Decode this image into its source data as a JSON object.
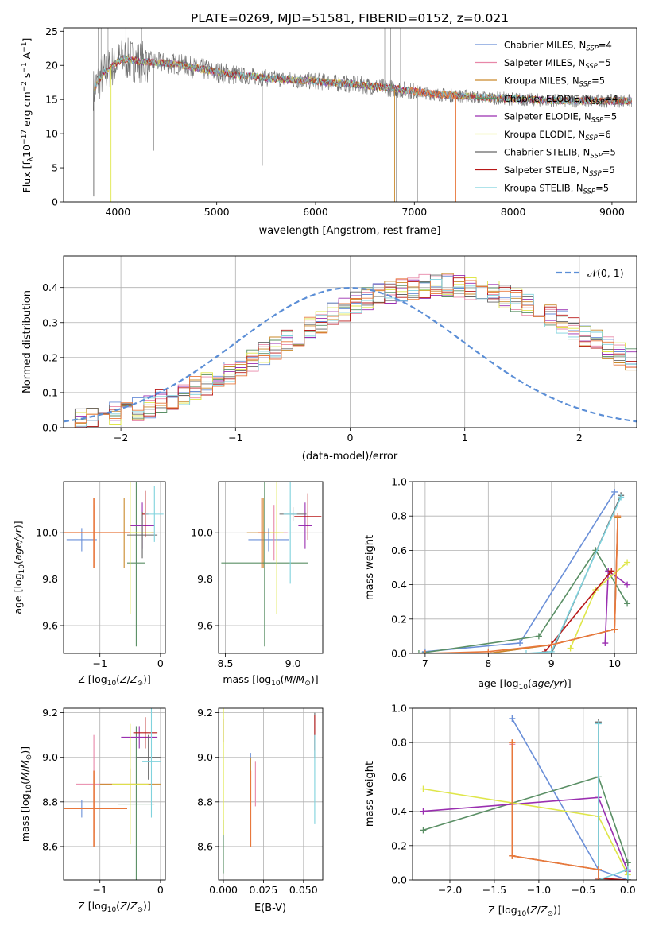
{
  "figure_title": "PLATE=0269, MJD=51581, FIBERID=0152, z=0.021",
  "colors": {
    "Chabrier MILES": "#6a8fd8",
    "Salpeter MILES": "#e887a8",
    "Kroupa MILES": "#c9892a",
    "Chabrier ELODIE": "#5a8f65",
    "Salpeter ELODIE": "#9a2fb0",
    "Kroupa ELODIE": "#dfe64a",
    "Chabrier STELIB": "#666666",
    "Salpeter STELIB": "#b81818",
    "Kroupa STELIB": "#7fd2dd",
    "gaussian": "#5b8ed6",
    "median": "#e8783c"
  },
  "chart_data": [
    {
      "type": "line",
      "xlabel": "wavelength [Angstrom, rest frame]",
      "ylabel": "Flux [f_λ10^{-17} erg cm^{-2} s^{-1} A^{-1}]",
      "xlim": [
        3450,
        9250
      ],
      "ylim": [
        0,
        25.5
      ],
      "xticks": [
        4000,
        5000,
        6000,
        7000,
        8000,
        9000
      ],
      "yticks": [
        0,
        5,
        10,
        15,
        20,
        25
      ],
      "grid": false,
      "legend_position": "top-right",
      "legend": [
        {
          "model": "Chabrier MILES",
          "nssp": "4"
        },
        {
          "model": "Salpeter MILES",
          "nssp": "5"
        },
        {
          "model": "Kroupa MILES",
          "nssp": "5"
        },
        {
          "model": "Chabrier ELODIE",
          "nssp": "4"
        },
        {
          "model": "Salpeter ELODIE",
          "nssp": "5"
        },
        {
          "model": "Kroupa ELODIE",
          "nssp": "6"
        },
        {
          "model": "Chabrier STELIB",
          "nssp": "5"
        },
        {
          "model": "Salpeter STELIB",
          "nssp": "5"
        },
        {
          "model": "Kroupa STELIB",
          "nssp": "5"
        }
      ],
      "spectrum_trend": {
        "x": [
          3760,
          3850,
          3950,
          4050,
          4200,
          4400,
          4600,
          4800,
          5000,
          5200,
          5400,
          5600,
          5800,
          6000,
          6200,
          6400,
          6600,
          6800,
          7000,
          7200,
          7400,
          7700,
          8000,
          8300,
          8600,
          8900,
          9200
        ],
        "y": [
          16.5,
          18.8,
          20.0,
          21.0,
          20.6,
          20.4,
          20.2,
          19.6,
          19.0,
          18.6,
          18.3,
          18.0,
          17.8,
          17.7,
          17.4,
          17.2,
          16.9,
          16.6,
          16.2,
          15.8,
          15.6,
          15.3,
          15.1,
          14.9,
          14.8,
          14.8,
          14.8
        ]
      },
      "deep_lines": [
        {
          "x": 3755,
          "y": 0.8,
          "series": "Chabrier STELIB"
        },
        {
          "x": 3930,
          "y": 0,
          "series": "Kroupa ELODIE"
        },
        {
          "x": 4360,
          "y": 7.5,
          "series": "Chabrier STELIB"
        },
        {
          "x": 5460,
          "y": 5.3,
          "series": "Chabrier STELIB"
        },
        {
          "x": 6800,
          "y": 0,
          "series": "Kroupa MILES"
        },
        {
          "x": 6820,
          "y": 0,
          "series": "Chabrier STELIB"
        },
        {
          "x": 7030,
          "y": 0,
          "series": "Chabrier STELIB"
        },
        {
          "x": 7420,
          "y": 0,
          "series": "median"
        }
      ],
      "clipped_lines": [
        3800,
        3830,
        3900,
        4080,
        4240,
        6700,
        6760,
        6860
      ]
    },
    {
      "type": "histogram",
      "xlabel": "(data-model)/error",
      "ylabel": "Normed distribution",
      "xlim": [
        -2.5,
        2.5
      ],
      "ylim": [
        0,
        0.49
      ],
      "xticks": [
        -2,
        -1,
        0,
        1,
        2
      ],
      "yticks": [
        0.0,
        0.1,
        0.2,
        0.3,
        0.4
      ],
      "grid": true,
      "legend_position": "top-right",
      "bin_width": 0.1,
      "bin_start": -2.5,
      "base_centers": [
        0.018,
        0.025,
        0.031,
        0.036,
        0.041,
        0.046,
        0.052,
        0.062,
        0.073,
        0.085,
        0.097,
        0.111,
        0.126,
        0.142,
        0.158,
        0.175,
        0.191,
        0.209,
        0.227,
        0.246,
        0.266,
        0.285,
        0.303,
        0.321,
        0.337,
        0.353,
        0.365,
        0.377,
        0.386,
        0.394,
        0.4,
        0.403,
        0.405,
        0.405,
        0.403,
        0.4,
        0.394,
        0.386,
        0.377,
        0.365,
        0.353,
        0.337,
        0.321,
        0.303,
        0.285,
        0.266,
        0.246,
        0.227,
        0.209,
        0.191
      ],
      "reference_curve": {
        "name": "𝒩(0, 1)",
        "mean": 0,
        "sigma": 1
      }
    },
    {
      "type": "scatter",
      "xlabel": "Z [log10(Z/Z⊙)]",
      "ylabel": "age  [log10(age/yr)]",
      "xlim": [
        -1.6,
        0.08
      ],
      "ylim": [
        9.48,
        10.22
      ],
      "xticks": [
        -1,
        0
      ],
      "yticks": [
        9.6,
        9.8,
        10.0
      ],
      "grid": true,
      "points": [
        {
          "series": "Chabrier MILES",
          "x": -1.3,
          "xerr": 0.25,
          "y": 9.97,
          "yerr": 0.05
        },
        {
          "series": "Salpeter MILES",
          "x": -1.1,
          "xerr": 0.18,
          "y": 10.0,
          "yerr": 0.12
        },
        {
          "series": "Kroupa MILES",
          "x": -0.6,
          "xerr": 0.5,
          "y": 10.0,
          "yerr": 0.15
        },
        {
          "series": "Chabrier ELODIE",
          "x": -0.4,
          "xerr": 0.15,
          "y": 9.87,
          "yerr": 0.36
        },
        {
          "series": "Salpeter ELODIE",
          "x": -0.3,
          "xerr": 0.2,
          "y": 10.03,
          "yerr": 0.1
        },
        {
          "series": "Kroupa ELODIE",
          "x": -0.5,
          "xerr": 0.35,
          "y": 10.0,
          "yerr": 0.35
        },
        {
          "series": "Chabrier STELIB",
          "x": -0.3,
          "xerr": 0.25,
          "y": 9.99,
          "yerr": 0.1
        },
        {
          "series": "Salpeter STELIB",
          "x": -0.25,
          "xerr": 0.05,
          "y": 10.08,
          "yerr": 0.1
        },
        {
          "series": "Kroupa STELIB",
          "x": -0.1,
          "xerr": 0.15,
          "y": 10.08,
          "yerr": 0.12
        },
        {
          "series": "median",
          "x": -1.1,
          "xerr": 0.6,
          "y": 10.0,
          "yerr": 0.15
        }
      ]
    },
    {
      "type": "scatter",
      "xlabel": "mass [log10(M/M⊙)]",
      "ylabel": "",
      "xlim": [
        8.45,
        9.22
      ],
      "ylim": [
        9.48,
        10.22
      ],
      "xticks": [
        8.5,
        9.0
      ],
      "yticks": [
        9.6,
        9.8,
        10.0
      ],
      "grid": true,
      "points": [
        {
          "series": "Chabrier MILES",
          "x": 8.82,
          "xerr": 0.15,
          "y": 9.97,
          "yerr": 0.05
        },
        {
          "series": "Salpeter MILES",
          "x": 8.86,
          "xerr": 0.1,
          "y": 10.0,
          "yerr": 0.12
        },
        {
          "series": "Kroupa MILES",
          "x": 8.78,
          "xerr": 0.12,
          "y": 10.0,
          "yerr": 0.15
        },
        {
          "series": "Chabrier ELODIE",
          "x": 8.79,
          "xerr": 0.32,
          "y": 9.87,
          "yerr": 0.36
        },
        {
          "series": "Salpeter ELODIE",
          "x": 9.09,
          "xerr": 0.05,
          "y": 10.03,
          "yerr": 0.1
        },
        {
          "series": "Kroupa ELODIE",
          "x": 8.88,
          "xerr": 0.05,
          "y": 10.0,
          "yerr": 0.35
        },
        {
          "series": "Chabrier STELIB",
          "x": 9.0,
          "xerr": 0.1,
          "y": 10.08,
          "yerr": 0.03
        },
        {
          "series": "Salpeter STELIB",
          "x": 9.11,
          "xerr": 0.1,
          "y": 10.07,
          "yerr": 0.1
        },
        {
          "series": "Kroupa STELIB",
          "x": 8.98,
          "xerr": 0.05,
          "y": 10.08,
          "yerr": 0.3
        },
        {
          "series": "median",
          "x": 8.77,
          "xerr": 0.03,
          "y": 10.0,
          "yerr": 0.15
        }
      ]
    },
    {
      "type": "line",
      "xlabel": "age  [log10(age/yr)]",
      "ylabel": "mass weight",
      "xlim": [
        6.8,
        10.35
      ],
      "ylim": [
        0,
        1.0
      ],
      "xticks": [
        7,
        8,
        9,
        10
      ],
      "yticks": [
        0.0,
        0.2,
        0.4,
        0.6,
        0.8,
        1.0
      ],
      "grid": true,
      "series": [
        {
          "name": "Chabrier MILES",
          "x": [
            7.0,
            8.5,
            10.0
          ],
          "y": [
            0.01,
            0.06,
            0.94
          ]
        },
        {
          "name": "Salpeter MILES",
          "x": [
            7.0,
            8.0,
            9.0,
            10.0,
            10.05
          ],
          "y": [
            0.0,
            0.0,
            0.05,
            0.14,
            0.79
          ]
        },
        {
          "name": "Kroupa MILES",
          "x": [
            7.0,
            8.0,
            9.0,
            10.0,
            10.05
          ],
          "y": [
            0.0,
            0.0,
            0.05,
            0.14,
            0.79
          ]
        },
        {
          "name": "Chabrier ELODIE",
          "x": [
            6.9,
            8.8,
            9.7,
            10.2
          ],
          "y": [
            0.0,
            0.1,
            0.6,
            0.29
          ]
        },
        {
          "name": "Salpeter ELODIE",
          "x": [
            9.85,
            9.9,
            10.2
          ],
          "y": [
            0.06,
            0.48,
            0.4
          ]
        },
        {
          "name": "Kroupa ELODIE",
          "x": [
            9.3,
            9.7,
            10.2
          ],
          "y": [
            0.03,
            0.37,
            0.53
          ]
        },
        {
          "name": "Chabrier STELIB",
          "x": [
            7.0,
            9.0,
            10.1
          ],
          "y": [
            0.0,
            0.0,
            0.92
          ]
        },
        {
          "name": "Salpeter STELIB",
          "x": [
            8.9,
            9.95
          ],
          "y": [
            0.01,
            0.48
          ]
        },
        {
          "name": "Kroupa STELIB",
          "x": [
            7.0,
            8.6,
            9.0,
            10.1
          ],
          "y": [
            0.0,
            0.0,
            0.01,
            0.91
          ]
        },
        {
          "name": "median",
          "x": [
            7.0,
            8.0,
            9.0,
            10.0,
            10.05
          ],
          "y": [
            0.0,
            0.01,
            0.05,
            0.14,
            0.8
          ]
        }
      ]
    },
    {
      "type": "scatter",
      "xlabel": "Z [log10(Z/Z⊙)]",
      "ylabel": "mass [log10(M/M⊙)]",
      "xlim": [
        -1.6,
        0.08
      ],
      "ylim": [
        8.45,
        9.22
      ],
      "xticks": [
        -1,
        0
      ],
      "yticks": [
        8.6,
        8.8,
        9.0,
        9.2
      ],
      "grid": true,
      "points": [
        {
          "series": "Chabrier MILES",
          "x": -1.3,
          "xerr": 0.25,
          "y": 8.77,
          "yerr": 0.04
        },
        {
          "series": "Salpeter MILES",
          "x": -1.1,
          "xerr": 0.3,
          "y": 8.88,
          "yerr": 0.22
        },
        {
          "series": "Kroupa MILES",
          "x": -0.5,
          "xerr": 0.5,
          "y": 8.88,
          "yerr": 0.07
        },
        {
          "series": "Chabrier ELODIE",
          "x": -0.4,
          "xerr": 0.3,
          "y": 8.79,
          "yerr": 0.35
        },
        {
          "series": "Salpeter ELODIE",
          "x": -0.35,
          "xerr": 0.3,
          "y": 9.09,
          "yerr": 0.05
        },
        {
          "series": "Kroupa ELODIE",
          "x": -0.5,
          "xerr": 0.3,
          "y": 8.88,
          "yerr": 0.27
        },
        {
          "series": "Chabrier STELIB",
          "x": -0.2,
          "xerr": 0.2,
          "y": 9.0,
          "yerr": 0.1
        },
        {
          "series": "Salpeter STELIB",
          "x": -0.25,
          "xerr": 0.2,
          "y": 9.11,
          "yerr": 0.07
        },
        {
          "series": "Kroupa STELIB",
          "x": -0.15,
          "xerr": 0.15,
          "y": 8.98,
          "yerr": 0.25
        },
        {
          "series": "median",
          "x": -1.1,
          "xerr": 0.55,
          "y": 8.77,
          "yerr": 0.17
        }
      ]
    },
    {
      "type": "scatter",
      "xlabel": "E(B-V)",
      "ylabel": "",
      "xlim": [
        -0.003,
        0.062
      ],
      "ylim": [
        8.45,
        9.22
      ],
      "xticks": [
        0.0,
        0.025,
        0.05
      ],
      "yticks": [
        8.6,
        8.8,
        9.0,
        9.2
      ],
      "grid": true,
      "points": [
        {
          "series": "Chabrier MILES",
          "x": 0.017,
          "xerr": 0,
          "y": 8.9,
          "yerr": 0.12
        },
        {
          "series": "Salpeter MILES",
          "x": 0.02,
          "xerr": 0,
          "y": 8.88,
          "yerr": 0.1
        },
        {
          "series": "Kroupa MILES",
          "x": 0.017,
          "xerr": 0,
          "y": 8.8,
          "yerr": 0.2
        },
        {
          "series": "Chabrier ELODIE",
          "x": 0.0,
          "xerr": 0,
          "y": 8.6,
          "yerr": 0.12
        },
        {
          "series": "Salpeter ELODIE",
          "x": 0.0,
          "xerr": 0,
          "y": 9.12,
          "yerr": 0.05
        },
        {
          "series": "Kroupa ELODIE",
          "x": 0.0,
          "xerr": 0,
          "y": 8.95,
          "yerr": 0.3
        },
        {
          "series": "Chabrier STELIB",
          "x": 0.057,
          "xerr": 0,
          "y": 9.1,
          "yerr": 0.1
        },
        {
          "series": "Salpeter STELIB",
          "x": 0.057,
          "xerr": 0,
          "y": 9.11,
          "yerr": 0.08
        },
        {
          "series": "Kroupa STELIB",
          "x": 0.057,
          "xerr": 0,
          "y": 8.9,
          "yerr": 0.2
        },
        {
          "series": "median",
          "x": 0.017,
          "xerr": 0,
          "y": 8.77,
          "yerr": 0.17
        }
      ]
    },
    {
      "type": "line",
      "xlabel": "Z [log10(Z/Z⊙)]",
      "ylabel": "mass weight",
      "xlim": [
        -2.42,
        0.1
      ],
      "ylim": [
        0,
        1.0
      ],
      "xticks": [
        -2.0,
        -1.5,
        -1.0,
        -0.5,
        0.0
      ],
      "yticks": [
        0.0,
        0.2,
        0.4,
        0.6,
        0.8,
        1.0
      ],
      "grid": true,
      "series": [
        {
          "name": "Chabrier MILES",
          "x": [
            -1.3,
            -0.33,
            0.0
          ],
          "y": [
            0.94,
            0.06,
            0.0
          ]
        },
        {
          "name": "Salpeter MILES",
          "x": [
            -1.3,
            -1.3,
            -0.33,
            -0.33
          ],
          "y": [
            0.79,
            0.14,
            0.06,
            0.0
          ]
        },
        {
          "name": "Kroupa MILES",
          "x": [
            -1.3,
            -1.3,
            -0.33,
            -0.33
          ],
          "y": [
            0.8,
            0.14,
            0.06,
            0.0
          ]
        },
        {
          "name": "Chabrier ELODIE",
          "x": [
            -2.3,
            -0.33,
            0.0,
            0.0
          ],
          "y": [
            0.29,
            0.6,
            0.1,
            0.0
          ]
        },
        {
          "name": "Salpeter ELODIE",
          "x": [
            -2.3,
            -0.33,
            0.0
          ],
          "y": [
            0.4,
            0.48,
            0.05
          ]
        },
        {
          "name": "Kroupa ELODIE",
          "x": [
            -2.3,
            -0.33,
            0.0
          ],
          "y": [
            0.53,
            0.37,
            0.03
          ]
        },
        {
          "name": "Chabrier STELIB",
          "x": [
            -0.33,
            -0.33,
            0.0
          ],
          "y": [
            0.92,
            0.0,
            0.0
          ]
        },
        {
          "name": "Salpeter STELIB",
          "x": [
            -0.33,
            0.0
          ],
          "y": [
            0.01,
            0.0
          ]
        },
        {
          "name": "Kroupa STELIB",
          "x": [
            -0.33,
            -0.33,
            0.0,
            0.0
          ],
          "y": [
            0.91,
            0.0,
            0.06,
            0.0
          ]
        },
        {
          "name": "median",
          "x": [
            -1.3,
            -1.3,
            -0.33,
            -0.33
          ],
          "y": [
            0.8,
            0.14,
            0.06,
            0.0
          ]
        }
      ]
    }
  ]
}
